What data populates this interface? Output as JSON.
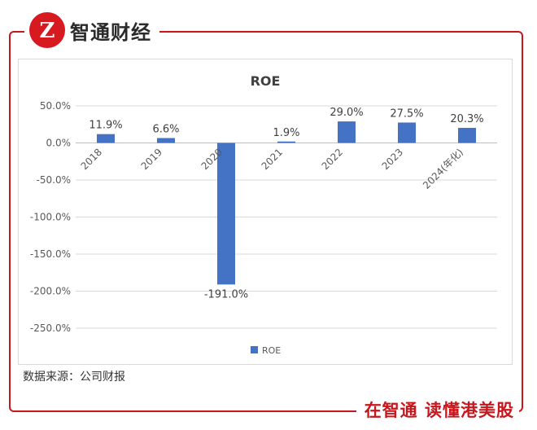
{
  "header": {
    "brand_name": "智通财经",
    "logo_glyph": "Z"
  },
  "footer": {
    "source": "数据来源：公司财报",
    "slogan": "在智通  读懂港美股"
  },
  "colors": {
    "brand_red": "#c8161d",
    "bar": "#4472c4",
    "grid": "#d9d9d9"
  },
  "chart_data": {
    "type": "bar",
    "title": "ROE",
    "categories": [
      "2018",
      "2019",
      "2020",
      "2021",
      "2022",
      "2023",
      "2024(年化)"
    ],
    "series": [
      {
        "name": "ROE",
        "values": [
          11.9,
          6.6,
          -191.0,
          1.9,
          29.0,
          27.5,
          20.3
        ]
      }
    ],
    "data_labels": [
      "11.9%",
      "6.6%",
      "-191.0%",
      "1.9%",
      "29.0%",
      "27.5%",
      "20.3%"
    ],
    "ylim": [
      -250,
      50
    ],
    "yticks": [
      50,
      0,
      -50,
      -100,
      -150,
      -200,
      -250
    ],
    "ytick_labels": [
      "50.0%",
      "0.0%",
      "-50.0%",
      "-100.0%",
      "-150.0%",
      "-200.0%",
      "-250.0%"
    ],
    "grid": true,
    "legend": "bottom"
  }
}
